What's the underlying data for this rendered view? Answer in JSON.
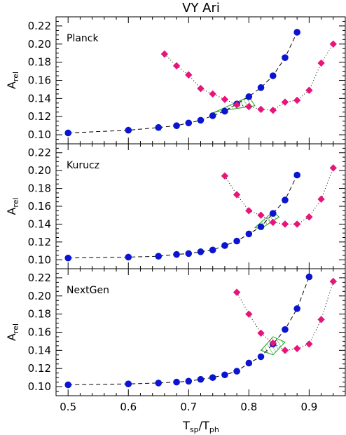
{
  "chart_data": {
    "type": "scatter",
    "title": "VY Ari",
    "xlabel": {
      "main": "T",
      "sub1": "sp",
      "sep": "/T",
      "sub2": "ph"
    },
    "ylabel": {
      "main": "A",
      "sub": "rel"
    },
    "xlim": [
      0.48,
      0.96
    ],
    "xticks": [
      "0.5",
      "0.6",
      "0.7",
      "0.8",
      "0.9"
    ],
    "ylim": [
      0.09,
      0.23
    ],
    "yticks": [
      "0.10",
      "0.12",
      "0.14",
      "0.16",
      "0.18",
      "0.20",
      "0.22"
    ],
    "colors": {
      "blue": "#0a14d2",
      "magenta": "#e8147a",
      "green": "#1ea01e"
    },
    "panels": [
      {
        "name": "Planck",
        "blue_series": {
          "x": [
            0.5,
            0.6,
            0.65,
            0.68,
            0.7,
            0.72,
            0.74,
            0.76,
            0.78,
            0.8,
            0.82,
            0.84,
            0.86,
            0.88
          ],
          "y": [
            0.102,
            0.105,
            0.108,
            0.11,
            0.113,
            0.116,
            0.121,
            0.126,
            0.134,
            0.142,
            0.152,
            0.165,
            0.185,
            0.213
          ]
        },
        "magenta_series": {
          "x": [
            0.66,
            0.68,
            0.7,
            0.72,
            0.74,
            0.76,
            0.78,
            0.8,
            0.82,
            0.84,
            0.86,
            0.88,
            0.9,
            0.92,
            0.94
          ],
          "y": [
            0.189,
            0.176,
            0.166,
            0.151,
            0.145,
            0.139,
            0.133,
            0.131,
            0.128,
            0.127,
            0.136,
            0.138,
            0.149,
            0.179,
            0.2
          ]
        },
        "region": [
          [
            0.74,
            0.124
          ],
          [
            0.8,
            0.142
          ],
          [
            0.81,
            0.132
          ],
          [
            0.75,
            0.126
          ]
        ]
      },
      {
        "name": "Kurucz",
        "blue_series": {
          "x": [
            0.5,
            0.6,
            0.65,
            0.68,
            0.7,
            0.72,
            0.74,
            0.76,
            0.78,
            0.8,
            0.82,
            0.84,
            0.86,
            0.88
          ],
          "y": [
            0.102,
            0.103,
            0.104,
            0.106,
            0.107,
            0.109,
            0.111,
            0.116,
            0.121,
            0.129,
            0.137,
            0.152,
            0.167,
            0.195
          ]
        },
        "magenta_series": {
          "x": [
            0.76,
            0.78,
            0.8,
            0.82,
            0.84,
            0.86,
            0.88,
            0.9,
            0.92,
            0.94
          ],
          "y": [
            0.194,
            0.173,
            0.155,
            0.15,
            0.142,
            0.14,
            0.14,
            0.148,
            0.168,
            0.203
          ]
        },
        "region": [
          [
            0.81,
            0.136
          ],
          [
            0.84,
            0.154
          ],
          [
            0.85,
            0.148
          ],
          [
            0.82,
            0.135
          ]
        ]
      },
      {
        "name": "NextGen",
        "blue_series": {
          "x": [
            0.5,
            0.6,
            0.65,
            0.68,
            0.7,
            0.72,
            0.74,
            0.76,
            0.78,
            0.8,
            0.82,
            0.84,
            0.86,
            0.88,
            0.9
          ],
          "y": [
            0.102,
            0.103,
            0.104,
            0.105,
            0.106,
            0.108,
            0.11,
            0.113,
            0.117,
            0.126,
            0.133,
            0.147,
            0.163,
            0.186,
            0.221
          ]
        },
        "magenta_series": {
          "x": [
            0.78,
            0.8,
            0.82,
            0.84,
            0.86,
            0.88,
            0.9,
            0.92,
            0.94
          ],
          "y": [
            0.204,
            0.18,
            0.159,
            0.148,
            0.14,
            0.142,
            0.147,
            0.174,
            0.216
          ]
        },
        "region": [
          [
            0.82,
            0.14
          ],
          [
            0.84,
            0.155
          ],
          [
            0.86,
            0.149
          ],
          [
            0.84,
            0.135
          ]
        ]
      }
    ]
  }
}
